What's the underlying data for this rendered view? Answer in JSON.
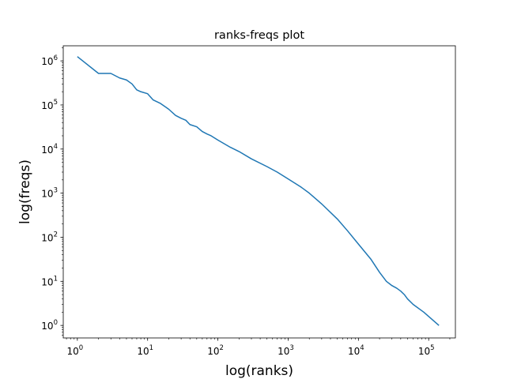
{
  "chart_data": {
    "type": "line",
    "title": "ranks-freqs plot",
    "xlabel": "log(ranks)",
    "ylabel": "log(freqs)",
    "xscale": "log",
    "yscale": "log",
    "xlim": [
      0.63,
      240000
    ],
    "ylim": [
      0.52,
      2200000
    ],
    "grid": false,
    "line_color": "#1f77b4",
    "xticks": [
      {
        "base": "10",
        "exp": "0",
        "value": 1
      },
      {
        "base": "10",
        "exp": "1",
        "value": 10
      },
      {
        "base": "10",
        "exp": "2",
        "value": 100
      },
      {
        "base": "10",
        "exp": "3",
        "value": 1000
      },
      {
        "base": "10",
        "exp": "4",
        "value": 10000
      },
      {
        "base": "10",
        "exp": "5",
        "value": 100000
      }
    ],
    "yticks": [
      {
        "base": "10",
        "exp": "0",
        "value": 1
      },
      {
        "base": "10",
        "exp": "1",
        "value": 10
      },
      {
        "base": "10",
        "exp": "2",
        "value": 100
      },
      {
        "base": "10",
        "exp": "3",
        "value": 1000
      },
      {
        "base": "10",
        "exp": "4",
        "value": 10000
      },
      {
        "base": "10",
        "exp": "5",
        "value": 100000
      },
      {
        "base": "10",
        "exp": "6",
        "value": 1000000
      }
    ],
    "series": [
      {
        "x": [
          1,
          2,
          3,
          4,
          5,
          6,
          7,
          8,
          10,
          12,
          15,
          18,
          20,
          25,
          30,
          35,
          40,
          50,
          60,
          70,
          80,
          100,
          150,
          200,
          300,
          500,
          700,
          1000,
          1500,
          2000,
          3000,
          5000,
          7000,
          10000,
          15000,
          20000,
          25000,
          30000,
          35000,
          40000,
          45000,
          50000,
          60000,
          85000,
          140000
        ],
        "y": [
          1250000,
          520000,
          520000,
          410000,
          370000,
          300000,
          220000,
          200000,
          180000,
          130000,
          110000,
          90000,
          80000,
          58000,
          50000,
          45000,
          36000,
          32000,
          25000,
          22000,
          20000,
          16000,
          11000,
          8800,
          6000,
          4000,
          3000,
          2100,
          1400,
          1000,
          570,
          260,
          140,
          70,
          32,
          16,
          10,
          8,
          7,
          6,
          5,
          4,
          3,
          2,
          1
        ]
      }
    ]
  }
}
